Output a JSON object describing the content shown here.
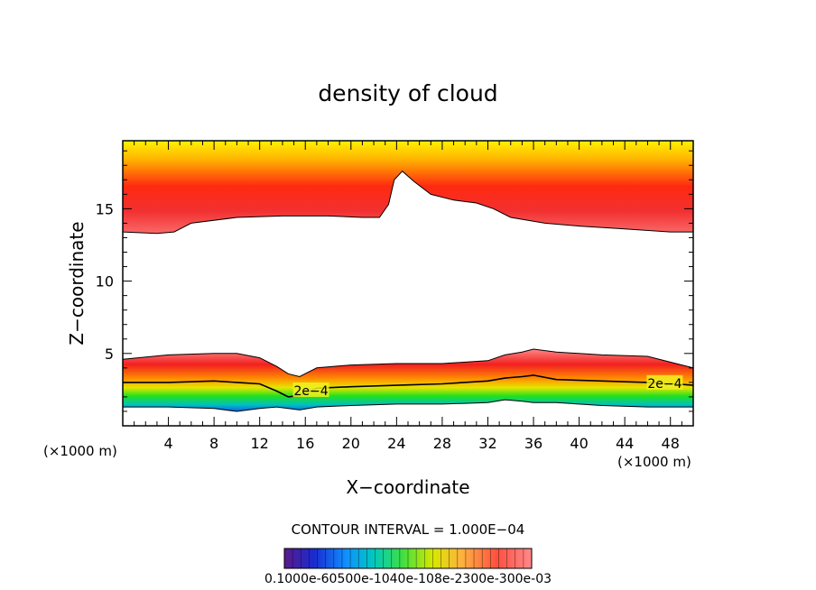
{
  "chart_data": {
    "type": "heatmap",
    "title": "density of cloud",
    "xlabel": "X−coordinate",
    "ylabel": "Z−coordinate",
    "x_unit_left": "(×1000 m)",
    "x_unit_right": "(×1000 m)",
    "xlim": [
      0,
      50
    ],
    "ylim": [
      0,
      19.7
    ],
    "x_ticks": [
      4,
      8,
      12,
      16,
      20,
      24,
      28,
      32,
      36,
      40,
      44,
      48
    ],
    "y_ticks": [
      5,
      10,
      15
    ],
    "contour_interval_text": "CONTOUR INTERVAL = 1.000E−04",
    "contour_labels": [
      "2e−4",
      "2e−4"
    ],
    "colorbar_labels_text": "0.1000e-60500e-1040e-108e-2300e-300e-03",
    "colorbar_range": [
      0.0001,
      0.003
    ],
    "upper_layer": {
      "x": [
        0,
        3,
        4.5,
        6,
        10,
        14,
        18,
        21,
        22.5,
        23.3,
        23.8,
        24.5,
        25.5,
        27,
        29,
        31,
        32.5,
        34,
        37,
        40,
        44,
        48,
        50
      ],
      "base": [
        13.4,
        13.3,
        13.4,
        14.0,
        14.4,
        14.5,
        14.5,
        14.4,
        14.4,
        15.3,
        17.0,
        17.6,
        16.9,
        16.0,
        15.6,
        15.4,
        15.0,
        14.4,
        14.0,
        13.8,
        13.6,
        13.4,
        13.4
      ]
    },
    "lower_layer": {
      "x": [
        0,
        4,
        8,
        10,
        12,
        13.5,
        14.5,
        15.5,
        17,
        20,
        24,
        28,
        32,
        33.5,
        35,
        36,
        38,
        42,
        46,
        48.5,
        50
      ],
      "top": [
        4.6,
        4.9,
        5.0,
        5.0,
        4.7,
        4.1,
        3.6,
        3.4,
        4.0,
        4.2,
        4.3,
        4.3,
        4.5,
        4.9,
        5.1,
        5.3,
        5.1,
        4.9,
        4.8,
        4.3,
        4.0
      ],
      "contour_2e4": [
        3.0,
        3.0,
        3.1,
        3.0,
        2.9,
        2.4,
        2.0,
        2.1,
        2.6,
        2.7,
        2.8,
        2.9,
        3.1,
        3.3,
        3.4,
        3.5,
        3.2,
        3.1,
        3.0,
        2.9,
        2.8
      ],
      "base": [
        1.3,
        1.3,
        1.2,
        1.0,
        1.2,
        1.3,
        1.2,
        1.1,
        1.3,
        1.4,
        1.5,
        1.5,
        1.6,
        1.8,
        1.7,
        1.6,
        1.6,
        1.4,
        1.3,
        1.3,
        1.3
      ]
    }
  }
}
